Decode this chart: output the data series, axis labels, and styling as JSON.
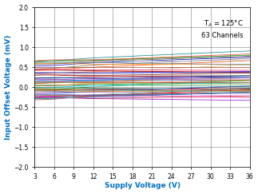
{
  "title": "",
  "xlabel": "Supply Voltage (V)",
  "ylabel": "Input Offset Voltage (mV)",
  "xlim": [
    3,
    36
  ],
  "ylim": [
    -2,
    2
  ],
  "xticks": [
    3,
    6,
    9,
    12,
    15,
    18,
    21,
    24,
    27,
    30,
    33,
    36
  ],
  "yticks": [
    -2,
    -1.5,
    -1,
    -0.5,
    0,
    0.5,
    1,
    1.5,
    2
  ],
  "annotation": "T$_A$ = 125°C\n63 Channels",
  "n_channels": 63,
  "x_start": 3,
  "x_end": 36,
  "seed": 42,
  "background_color": "#ffffff",
  "label_color": "#0070c0",
  "colors": [
    "#ff0000",
    "#0000ff",
    "#008000",
    "#808080",
    "#800000",
    "#00008b",
    "#ff6600",
    "#008080",
    "#800080",
    "#a0522d",
    "#ff0000",
    "#0000cd",
    "#006400",
    "#696969",
    "#8b0000",
    "#4169e1",
    "#ff4500",
    "#20b2aa",
    "#9400d3",
    "#8b4513",
    "#dc143c",
    "#1e90ff",
    "#228b22",
    "#a9a9a9",
    "#b22222",
    "#6495ed",
    "#ff7f50",
    "#2e8b57",
    "#ba55d3",
    "#d2691e",
    "#e00000",
    "#000080",
    "#32cd32",
    "#c0c0c0",
    "#a52a2a",
    "#87ceeb",
    "#ffa500",
    "#00ced1",
    "#da70d6",
    "#cd853f",
    "#ff1493",
    "#4682b4",
    "#556b2f",
    "#d3d3d3",
    "#c0392b",
    "#5f9ea0",
    "#ff8c00",
    "#48d1cc",
    "#ee82ee",
    "#deb887",
    "#e91e63",
    "#2196f3",
    "#4caf50",
    "#9e9e9e",
    "#795548",
    "#9c27b0",
    "#ff5722",
    "#009688",
    "#673ab7",
    "#607d8b",
    "#f44336",
    "#3f51b5",
    "#8bc34a"
  ]
}
